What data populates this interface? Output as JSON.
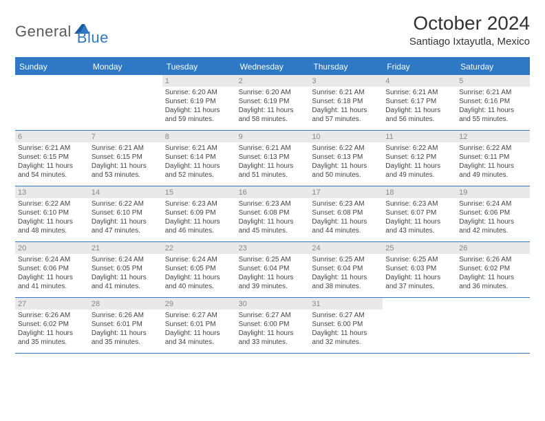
{
  "logo": {
    "text1": "General",
    "text2": "Blue"
  },
  "title": "October 2024",
  "location": "Santiago Ixtayutla, Mexico",
  "header_bg": "#2f78c4",
  "daynum_bg": "#e9e9e9",
  "columns": [
    "Sunday",
    "Monday",
    "Tuesday",
    "Wednesday",
    "Thursday",
    "Friday",
    "Saturday"
  ],
  "weeks": [
    [
      {
        "empty": true
      },
      {
        "empty": true
      },
      {
        "n": "1",
        "sr": "6:20 AM",
        "ss": "6:19 PM",
        "dl": "11 hours and 59 minutes."
      },
      {
        "n": "2",
        "sr": "6:20 AM",
        "ss": "6:19 PM",
        "dl": "11 hours and 58 minutes."
      },
      {
        "n": "3",
        "sr": "6:21 AM",
        "ss": "6:18 PM",
        "dl": "11 hours and 57 minutes."
      },
      {
        "n": "4",
        "sr": "6:21 AM",
        "ss": "6:17 PM",
        "dl": "11 hours and 56 minutes."
      },
      {
        "n": "5",
        "sr": "6:21 AM",
        "ss": "6:16 PM",
        "dl": "11 hours and 55 minutes."
      }
    ],
    [
      {
        "n": "6",
        "sr": "6:21 AM",
        "ss": "6:15 PM",
        "dl": "11 hours and 54 minutes."
      },
      {
        "n": "7",
        "sr": "6:21 AM",
        "ss": "6:15 PM",
        "dl": "11 hours and 53 minutes."
      },
      {
        "n": "8",
        "sr": "6:21 AM",
        "ss": "6:14 PM",
        "dl": "11 hours and 52 minutes."
      },
      {
        "n": "9",
        "sr": "6:21 AM",
        "ss": "6:13 PM",
        "dl": "11 hours and 51 minutes."
      },
      {
        "n": "10",
        "sr": "6:22 AM",
        "ss": "6:13 PM",
        "dl": "11 hours and 50 minutes."
      },
      {
        "n": "11",
        "sr": "6:22 AM",
        "ss": "6:12 PM",
        "dl": "11 hours and 49 minutes."
      },
      {
        "n": "12",
        "sr": "6:22 AM",
        "ss": "6:11 PM",
        "dl": "11 hours and 49 minutes."
      }
    ],
    [
      {
        "n": "13",
        "sr": "6:22 AM",
        "ss": "6:10 PM",
        "dl": "11 hours and 48 minutes."
      },
      {
        "n": "14",
        "sr": "6:22 AM",
        "ss": "6:10 PM",
        "dl": "11 hours and 47 minutes."
      },
      {
        "n": "15",
        "sr": "6:23 AM",
        "ss": "6:09 PM",
        "dl": "11 hours and 46 minutes."
      },
      {
        "n": "16",
        "sr": "6:23 AM",
        "ss": "6:08 PM",
        "dl": "11 hours and 45 minutes."
      },
      {
        "n": "17",
        "sr": "6:23 AM",
        "ss": "6:08 PM",
        "dl": "11 hours and 44 minutes."
      },
      {
        "n": "18",
        "sr": "6:23 AM",
        "ss": "6:07 PM",
        "dl": "11 hours and 43 minutes."
      },
      {
        "n": "19",
        "sr": "6:24 AM",
        "ss": "6:06 PM",
        "dl": "11 hours and 42 minutes."
      }
    ],
    [
      {
        "n": "20",
        "sr": "6:24 AM",
        "ss": "6:06 PM",
        "dl": "11 hours and 41 minutes."
      },
      {
        "n": "21",
        "sr": "6:24 AM",
        "ss": "6:05 PM",
        "dl": "11 hours and 41 minutes."
      },
      {
        "n": "22",
        "sr": "6:24 AM",
        "ss": "6:05 PM",
        "dl": "11 hours and 40 minutes."
      },
      {
        "n": "23",
        "sr": "6:25 AM",
        "ss": "6:04 PM",
        "dl": "11 hours and 39 minutes."
      },
      {
        "n": "24",
        "sr": "6:25 AM",
        "ss": "6:04 PM",
        "dl": "11 hours and 38 minutes."
      },
      {
        "n": "25",
        "sr": "6:25 AM",
        "ss": "6:03 PM",
        "dl": "11 hours and 37 minutes."
      },
      {
        "n": "26",
        "sr": "6:26 AM",
        "ss": "6:02 PM",
        "dl": "11 hours and 36 minutes."
      }
    ],
    [
      {
        "n": "27",
        "sr": "6:26 AM",
        "ss": "6:02 PM",
        "dl": "11 hours and 35 minutes."
      },
      {
        "n": "28",
        "sr": "6:26 AM",
        "ss": "6:01 PM",
        "dl": "11 hours and 35 minutes."
      },
      {
        "n": "29",
        "sr": "6:27 AM",
        "ss": "6:01 PM",
        "dl": "11 hours and 34 minutes."
      },
      {
        "n": "30",
        "sr": "6:27 AM",
        "ss": "6:00 PM",
        "dl": "11 hours and 33 minutes."
      },
      {
        "n": "31",
        "sr": "6:27 AM",
        "ss": "6:00 PM",
        "dl": "11 hours and 32 minutes."
      },
      {
        "empty": true
      },
      {
        "empty": true
      }
    ]
  ],
  "labels": {
    "sunrise": "Sunrise: ",
    "sunset": "Sunset: ",
    "daylight": "Daylight: "
  }
}
